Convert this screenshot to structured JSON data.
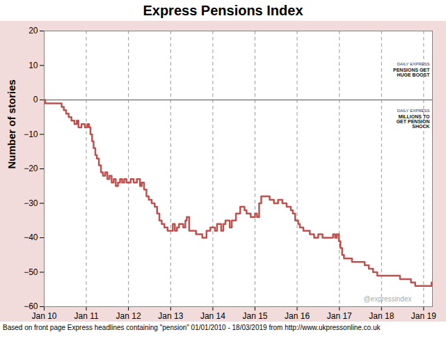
{
  "chart_data": {
    "type": "line",
    "title": "Express Pensions Index",
    "y_label": "Number of stories",
    "caption": "Based on front page Express headlines containing \"pension\" 01/01/2010 - 18/03/2019 from http://www.ukpressonline.co.uk",
    "color": "#c0504d",
    "line_style": "step",
    "grid": "x",
    "x": [
      "2010-01-01",
      "2010-01-10",
      "2010-06-01",
      "2010-06-20",
      "2010-07-10",
      "2010-08-01",
      "2010-08-25",
      "2010-09-20",
      "2010-10-10",
      "2010-10-25",
      "2010-11-20",
      "2010-12-20",
      "2011-01-10",
      "2011-01-25",
      "2011-02-06",
      "2011-02-20",
      "2011-03-05",
      "2011-03-20",
      "2011-04-02",
      "2011-04-20",
      "2011-05-08",
      "2011-05-25",
      "2011-06-14",
      "2011-07-02",
      "2011-07-20",
      "2011-08-08",
      "2011-08-26",
      "2011-09-13",
      "2011-10-02",
      "2011-10-20",
      "2011-11-07",
      "2011-11-25",
      "2011-12-15",
      "2012-01-20",
      "2012-02-15",
      "2012-03-14",
      "2012-04-10",
      "2012-04-25",
      "2012-05-15",
      "2012-06-05",
      "2012-06-25",
      "2012-07-20",
      "2012-08-15",
      "2012-09-05",
      "2012-09-25",
      "2012-10-15",
      "2012-11-07",
      "2012-12-05",
      "2013-01-19",
      "2013-02-06",
      "2013-02-24",
      "2013-03-14",
      "2013-04-20",
      "2013-05-08",
      "2013-05-20",
      "2013-06-10",
      "2013-08-08",
      "2013-10-02",
      "2013-11-07",
      "2013-12-10",
      "2014-01-19",
      "2014-02-06",
      "2014-03-14",
      "2014-04-02",
      "2014-04-20",
      "2014-05-27",
      "2014-06-14",
      "2014-07-20",
      "2014-08-26",
      "2014-10-02",
      "2014-10-20",
      "2014-11-25",
      "2015-01-01",
      "2015-01-19",
      "2015-02-06",
      "2015-02-24",
      "2015-04-20",
      "2015-05-08",
      "2015-06-14",
      "2015-07-20",
      "2015-08-26",
      "2015-10-02",
      "2015-11-07",
      "2015-11-25",
      "2015-12-15",
      "2016-01-10",
      "2016-01-25",
      "2016-02-24",
      "2016-04-20",
      "2016-05-27",
      "2016-07-02",
      "2016-08-08",
      "2016-11-07",
      "2016-11-25",
      "2016-12-10",
      "2016-12-28",
      "2017-01-10",
      "2017-01-25",
      "2017-02-10",
      "2017-04-20",
      "2017-08-08",
      "2017-09-13",
      "2017-10-20",
      "2017-11-25",
      "2018-06-10",
      "2018-09-13",
      "2018-10-20",
      "2019-03-10",
      "2019-03-18"
    ],
    "values": [
      0,
      -1,
      -2,
      -3,
      -4,
      -5,
      -6,
      -7,
      -6,
      -8,
      -7,
      -8,
      -7,
      -8,
      -10,
      -12,
      -14,
      -16,
      -17,
      -19,
      -21,
      -22,
      -21,
      -23,
      -22,
      -24,
      -23,
      -25,
      -24,
      -23,
      -24,
      -23,
      -24,
      -23,
      -24,
      -23,
      -25,
      -24,
      -26,
      -28,
      -29,
      -30,
      -31,
      -33,
      -35,
      -36,
      -37,
      -38,
      -36,
      -38,
      -37,
      -36,
      -37,
      -35,
      -34,
      -38,
      -39,
      -40,
      -38,
      -37,
      -38,
      -36,
      -38,
      -36,
      -35,
      -37,
      -35,
      -33,
      -31,
      -32,
      -33,
      -34,
      -33,
      -34,
      -30,
      -28,
      -28,
      -29,
      -30,
      -29,
      -30,
      -31,
      -32,
      -33,
      -35,
      -36,
      -37,
      -38,
      -39,
      -40,
      -39,
      -40,
      -39,
      -40,
      -39,
      -41,
      -43,
      -45,
      -46,
      -47,
      -48,
      -49,
      -50,
      -51,
      -52,
      -53,
      -54,
      -53,
      -53
    ],
    "xlim": [
      "2010-01-01",
      "2019-03-18"
    ],
    "xticks": [
      {
        "value": "2010-01-01",
        "label": "Jan 10"
      },
      {
        "value": "2011-01-01",
        "label": "Jan 11"
      },
      {
        "value": "2012-01-01",
        "label": "Jan 12"
      },
      {
        "value": "2013-01-01",
        "label": "Jan 13"
      },
      {
        "value": "2014-01-01",
        "label": "Jan 14"
      },
      {
        "value": "2015-01-01",
        "label": "Jan 15"
      },
      {
        "value": "2016-01-01",
        "label": "Jan 16"
      },
      {
        "value": "2017-01-01",
        "label": "Jan 17"
      },
      {
        "value": "2018-01-01",
        "label": "Jan 18"
      },
      {
        "value": "2019-01-01",
        "label": "Jan 19"
      }
    ],
    "ylim": [
      -60,
      20
    ],
    "yticks": [
      -60,
      -50,
      -40,
      -30,
      -20,
      -10,
      0,
      10,
      20
    ],
    "annotations": [
      {
        "type": "hline",
        "y": 0
      },
      {
        "type": "cover",
        "masthead": "DAILY EXPRESS",
        "text": "PENSIONS GET HUGE BOOST"
      },
      {
        "type": "cover",
        "masthead": "DAILY EXPRESS",
        "text": "MILLIONS TO GET PENSION SHOCK"
      },
      {
        "type": "watermark",
        "text": "@expressindex"
      }
    ]
  }
}
